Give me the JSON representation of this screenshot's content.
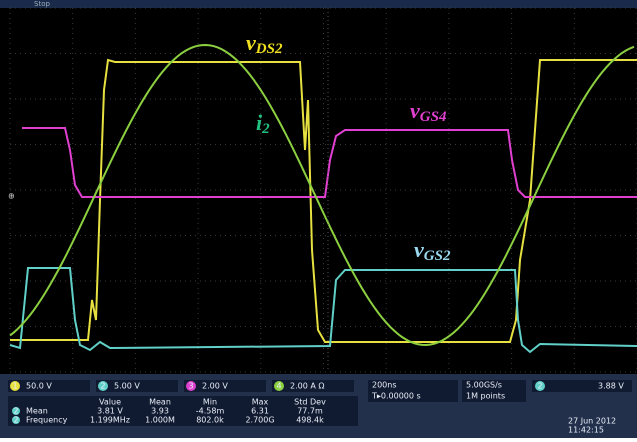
{
  "screen": {
    "status": "Stop",
    "labels": [
      {
        "main": "v",
        "sub": "DS2"
      },
      {
        "main": "i",
        "sub": "2"
      },
      {
        "main": "v",
        "sub": "GS4"
      },
      {
        "main": "v",
        "sub": "GS2"
      }
    ],
    "channels": [
      {
        "number": "1",
        "scale": "50.0 V"
      },
      {
        "number": "2",
        "scale": "5.00 V"
      },
      {
        "number": "3",
        "scale": "2.00 V"
      },
      {
        "number": "4",
        "scale": "2.00 A Ω"
      }
    ],
    "timebase": "200ns",
    "delay": "T▸0.00000 s",
    "sample_rate": "5.00GS/s",
    "record": "1M points",
    "trigger": {
      "channel": "2",
      "level": "3.88 V"
    },
    "measurements": {
      "header": [
        "Value",
        "Mean",
        "Min",
        "Max",
        "Std Dev"
      ],
      "rows": [
        {
          "channel": "2",
          "name": "Mean",
          "cells": [
            "3.81 V",
            "3.93",
            "-4.58m",
            "6.31",
            "77.7m"
          ]
        },
        {
          "channel": "2",
          "name": "Frequency",
          "cells": [
            "1.199MHz",
            "1.000M",
            "802.0k",
            "2.700G",
            "498.4k"
          ]
        }
      ]
    },
    "date": "27 Jun 2012",
    "time": "11:42:15"
  }
}
